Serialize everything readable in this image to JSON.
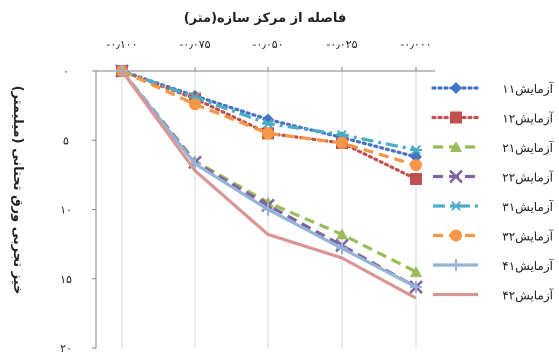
{
  "chart_data": {
    "type": "line",
    "xlabel": "فاصله از مرکز سازه(متر)",
    "ylabel": "خیز تجربی ورق تحتانی (میلیمتر)",
    "x": [
      0.1,
      0.075,
      0.05,
      0.025,
      0.0
    ],
    "x_tick_labels": [
      "-۰٫۱۰۰",
      "-۰٫۰۷۵",
      "-۰٫۰۵۰",
      "-۰٫۰۲۵",
      "-۰٫۰۰۰"
    ],
    "y_tick_labels": [
      "۰",
      "۵",
      "۱۰",
      "۱۵",
      "۲۰"
    ],
    "y_ticks": [
      0,
      5,
      10,
      15,
      20
    ],
    "xlim": [
      0.1,
      0.0
    ],
    "ylim": [
      0,
      20
    ],
    "y_inverted": true,
    "x_axis_position": "top",
    "grid": "vertical",
    "legend_position": "right",
    "series": [
      {
        "name": "آزمایش۱۱",
        "values": [
          0,
          1.8,
          3.5,
          4.8,
          6.2
        ],
        "color": "#4472c4",
        "dash": "dot",
        "marker": "diamond"
      },
      {
        "name": "آزمایش۱۲",
        "values": [
          0,
          2.0,
          4.5,
          5.2,
          7.8
        ],
        "color": "#c0504d",
        "dash": "dot",
        "marker": "square"
      },
      {
        "name": "آزمایش۲۱",
        "values": [
          0,
          6.5,
          9.5,
          11.8,
          14.5
        ],
        "color": "#9bbb59",
        "dash": "dash",
        "marker": "triangle"
      },
      {
        "name": "آزمایش۲۲",
        "values": [
          0,
          6.6,
          9.7,
          12.6,
          15.6
        ],
        "color": "#8064a2",
        "dash": "dash",
        "marker": "x"
      },
      {
        "name": "آزمایش۳۱",
        "values": [
          0,
          1.9,
          3.8,
          4.6,
          5.7
        ],
        "color": "#4bacc6",
        "dash": "dashdot",
        "marker": "asterisk"
      },
      {
        "name": "آزمایش۳۲",
        "values": [
          0,
          2.4,
          4.5,
          5.2,
          6.8
        ],
        "color": "#f79646",
        "dash": "dash",
        "marker": "circle"
      },
      {
        "name": "آزمایش۴۱",
        "values": [
          0,
          6.7,
          10.0,
          12.8,
          15.6
        ],
        "color": "#95b3d7",
        "dash": "solid",
        "marker": "plus"
      },
      {
        "name": "آزمایش۴۲",
        "values": [
          0,
          7.2,
          11.8,
          13.5,
          16.4
        ],
        "color": "#d99694",
        "dash": "solid",
        "marker": "none"
      }
    ]
  }
}
